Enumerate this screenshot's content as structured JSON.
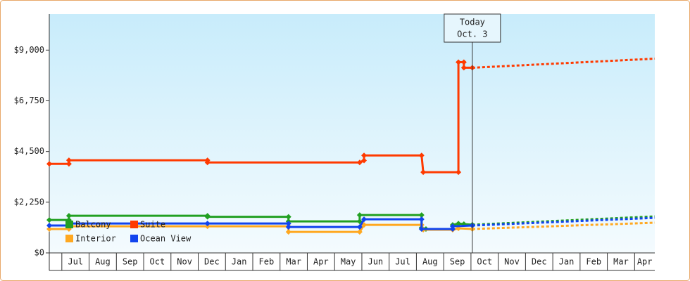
{
  "chart_data": {
    "type": "line",
    "ylim": [
      0,
      10600
    ],
    "yticks": [
      {
        "value": 0,
        "label": "$0"
      },
      {
        "value": 2250,
        "label": "$2,250"
      },
      {
        "value": 4500,
        "label": "$4,500"
      },
      {
        "value": 6750,
        "label": "$6,750"
      },
      {
        "value": 9000,
        "label": "$9,000"
      }
    ],
    "xlim": [
      -0.46,
      21.74
    ],
    "xticks": [
      {
        "value": 0,
        "label": "Jul"
      },
      {
        "value": 1,
        "label": "Aug"
      },
      {
        "value": 2,
        "label": "Sep"
      },
      {
        "value": 3,
        "label": "Oct"
      },
      {
        "value": 4,
        "label": "Nov"
      },
      {
        "value": 5,
        "label": "Dec"
      },
      {
        "value": 6,
        "label": "Jan"
      },
      {
        "value": 7,
        "label": "Feb"
      },
      {
        "value": 8,
        "label": "Mar"
      },
      {
        "value": 9,
        "label": "Apr"
      },
      {
        "value": 10,
        "label": "May"
      },
      {
        "value": 11,
        "label": "Jun"
      },
      {
        "value": 12,
        "label": "Jul"
      },
      {
        "value": 13,
        "label": "Aug"
      },
      {
        "value": 14,
        "label": "Sep"
      },
      {
        "value": 15,
        "label": "Oct"
      },
      {
        "value": 16,
        "label": "Nov"
      },
      {
        "value": 17,
        "label": "Dec"
      },
      {
        "value": 18,
        "label": "Jan"
      },
      {
        "value": 19,
        "label": "Feb"
      },
      {
        "value": 20,
        "label": "Mar"
      },
      {
        "value": 21,
        "label": "Apr"
      }
    ],
    "annotation": {
      "x": 15.05,
      "lines": [
        "Today",
        "Oct. 3"
      ]
    },
    "series": [
      {
        "name": "Balcony",
        "color": "#22a022",
        "x": [
          -0.46,
          0.26,
          0.26,
          5.34,
          5.34,
          8.31,
          8.31,
          10.92,
          10.92,
          13.19,
          13.19,
          13.35,
          14.33,
          14.33,
          14.54,
          14.74,
          15.05
        ],
        "values": [
          1460,
          1460,
          1650,
          1650,
          1600,
          1600,
          1400,
          1400,
          1680,
          1680,
          1120,
          1060,
          1060,
          1245,
          1300,
          1280,
          1250
        ],
        "forecast_x": [
          15.05,
          21.74
        ],
        "forecast_values": [
          1250,
          1620
        ]
      },
      {
        "name": "Suite",
        "color": "#ff3a00",
        "x": [
          -0.46,
          0.26,
          0.26,
          5.34,
          5.34,
          10.92,
          11.08,
          11.08,
          13.19,
          13.25,
          14.54,
          14.54,
          14.74,
          14.74,
          15.05
        ],
        "values": [
          3950,
          3950,
          4110,
          4110,
          4015,
          4015,
          4100,
          4326,
          4326,
          3580,
          3580,
          8466,
          8466,
          8217,
          8217
        ],
        "forecast_x": [
          15.05,
          21.74
        ],
        "forecast_values": [
          8217,
          8620
        ]
      },
      {
        "name": "Interior",
        "color": "#ffa820",
        "x": [
          -0.46,
          0.26,
          0.26,
          5.34,
          8.31,
          8.31,
          10.92,
          11.08,
          13.19,
          13.25,
          14.33,
          14.54,
          15.05
        ],
        "values": [
          1060,
          1060,
          1180,
          1180,
          1180,
          930,
          930,
          1245,
          1245,
          1027,
          1027,
          1090,
          1060
        ],
        "forecast_x": [
          15.05,
          21.74
        ],
        "forecast_values": [
          1060,
          1340
        ]
      },
      {
        "name": "Ocean View",
        "color": "#1144ee",
        "x": [
          -0.46,
          0.26,
          0.26,
          5.34,
          8.31,
          8.31,
          10.92,
          11.08,
          13.19,
          13.19,
          14.33,
          14.33,
          15.05
        ],
        "values": [
          1214,
          1214,
          1307,
          1307,
          1307,
          1150,
          1150,
          1494,
          1494,
          1060,
          1060,
          1180,
          1214
        ],
        "forecast_x": [
          15.05,
          21.74
        ],
        "forecast_values": [
          1214,
          1556
        ]
      }
    ]
  }
}
